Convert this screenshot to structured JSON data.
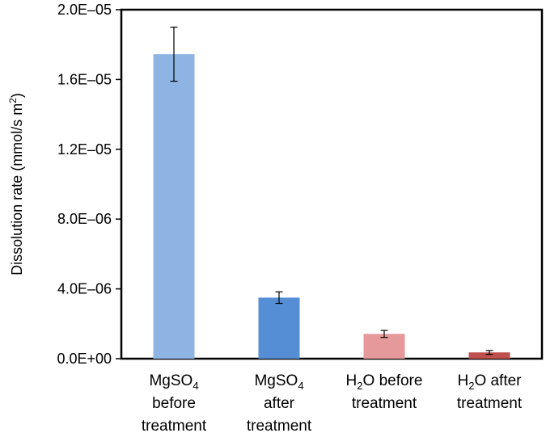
{
  "chart_data": {
    "type": "bar",
    "title": "",
    "ylabel": {
      "main": "Dissolution rate (mmol/s m",
      "sup": "2",
      "close": ")"
    },
    "ylim": [
      0,
      2e-05
    ],
    "grid": false,
    "yticks": [
      {
        "value": 0,
        "label": "0.0E+00"
      },
      {
        "value": 4e-06,
        "label": "4.0E–06"
      },
      {
        "value": 8e-06,
        "label": "8.0E–06"
      },
      {
        "value": 1.2e-05,
        "label": "1.2E–05"
      },
      {
        "value": 1.6e-05,
        "label": "1.6E–05"
      },
      {
        "value": 2e-05,
        "label": "2.0E–05"
      }
    ],
    "categories": [
      {
        "lines": [
          [
            {
              "t": "MgSO"
            },
            {
              "t": "4",
              "sub": true
            }
          ],
          [
            {
              "t": "before"
            }
          ],
          [
            {
              "t": "treatment"
            }
          ]
        ]
      },
      {
        "lines": [
          [
            {
              "t": "MgSO"
            },
            {
              "t": "4",
              "sub": true
            }
          ],
          [
            {
              "t": "after"
            }
          ],
          [
            {
              "t": "treatment"
            }
          ]
        ]
      },
      {
        "lines": [
          [
            {
              "t": "H"
            },
            {
              "t": "2",
              "sub": true
            },
            {
              "t": "O before"
            }
          ],
          [
            {
              "t": "treatment"
            }
          ]
        ]
      },
      {
        "lines": [
          [
            {
              "t": "H"
            },
            {
              "t": "2",
              "sub": true
            },
            {
              "t": "O after"
            }
          ],
          [
            {
              "t": "treatment"
            }
          ]
        ]
      }
    ],
    "values": [
      1.745e-05,
      3.5e-06,
      1.42e-06,
      3.6e-07
    ],
    "errors": [
      1.55e-06,
      3.3e-07,
      2e-07,
      1.1e-07
    ],
    "colors": [
      "#8eb4e3",
      "#558ed5",
      "#e6999a",
      "#c0504d"
    ]
  }
}
